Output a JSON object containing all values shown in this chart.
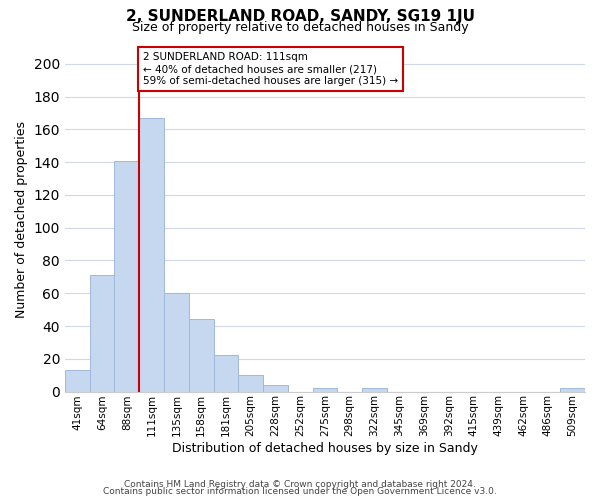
{
  "title": "2, SUNDERLAND ROAD, SANDY, SG19 1JU",
  "subtitle": "Size of property relative to detached houses in Sandy",
  "xlabel": "Distribution of detached houses by size in Sandy",
  "ylabel": "Number of detached properties",
  "bar_labels": [
    "41sqm",
    "64sqm",
    "88sqm",
    "111sqm",
    "135sqm",
    "158sqm",
    "181sqm",
    "205sqm",
    "228sqm",
    "252sqm",
    "275sqm",
    "298sqm",
    "322sqm",
    "345sqm",
    "369sqm",
    "392sqm",
    "415sqm",
    "439sqm",
    "462sqm",
    "486sqm",
    "509sqm"
  ],
  "bar_values": [
    13,
    71,
    141,
    167,
    60,
    44,
    22,
    10,
    4,
    0,
    2,
    0,
    2,
    0,
    0,
    0,
    0,
    0,
    0,
    0,
    2
  ],
  "bar_color": "#c5d8f0",
  "bar_edge_color": "#a0b8d8",
  "vline_x_index": 3,
  "vline_color": "#cc0000",
  "annotation_title": "2 SUNDERLAND ROAD: 111sqm",
  "annotation_line1": "← 40% of detached houses are smaller (217)",
  "annotation_line2": "59% of semi-detached houses are larger (315) →",
  "annotation_box_color": "#ffffff",
  "annotation_box_edge": "#cc0000",
  "ylim": [
    0,
    210
  ],
  "yticks": [
    0,
    20,
    40,
    60,
    80,
    100,
    120,
    140,
    160,
    180,
    200
  ],
  "footer1": "Contains HM Land Registry data © Crown copyright and database right 2024.",
  "footer2": "Contains public sector information licensed under the Open Government Licence v3.0.",
  "background_color": "#ffffff",
  "grid_color": "#d0d8e8"
}
